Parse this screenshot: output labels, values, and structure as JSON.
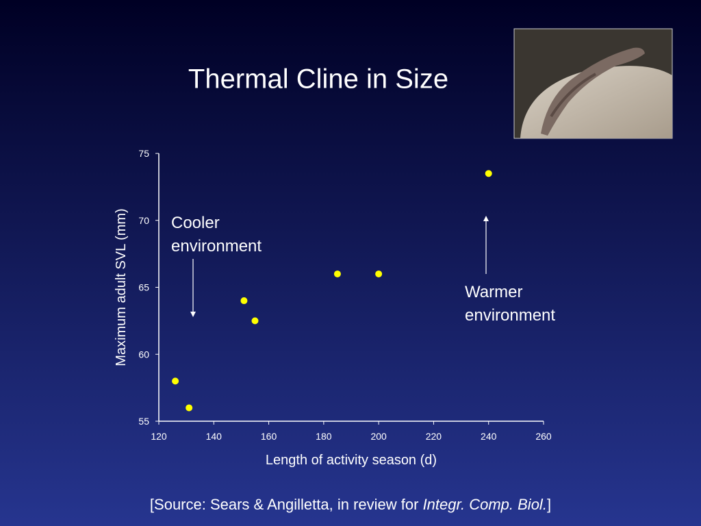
{
  "chart_data": {
    "type": "scatter",
    "title": "Thermal Cline in Size",
    "xlabel": "Length of activity season (d)",
    "ylabel": "Maximum adult SVL (mm)",
    "x": [
      126,
      131,
      151,
      155,
      185,
      200,
      240
    ],
    "series": [
      {
        "color": "#ffff00",
        "values": [
          58,
          56,
          64,
          62.5,
          66,
          66,
          73.5
        ]
      }
    ],
    "xlim": [
      120,
      260
    ],
    "xticks": [
      120,
      140,
      160,
      180,
      200,
      220,
      240,
      260
    ],
    "ylim": [
      55,
      75
    ],
    "yticks": [
      55,
      60,
      65,
      70,
      75
    ],
    "annotations": [
      {
        "lines": [
          "Cooler",
          "environment"
        ]
      },
      {
        "lines": [
          "Warmer",
          "environment"
        ]
      }
    ]
  },
  "source": {
    "prefix": "[Source: Sears & Angilletta, in review for ",
    "journal": "Integr. Comp. Biol.",
    "suffix": "]"
  }
}
